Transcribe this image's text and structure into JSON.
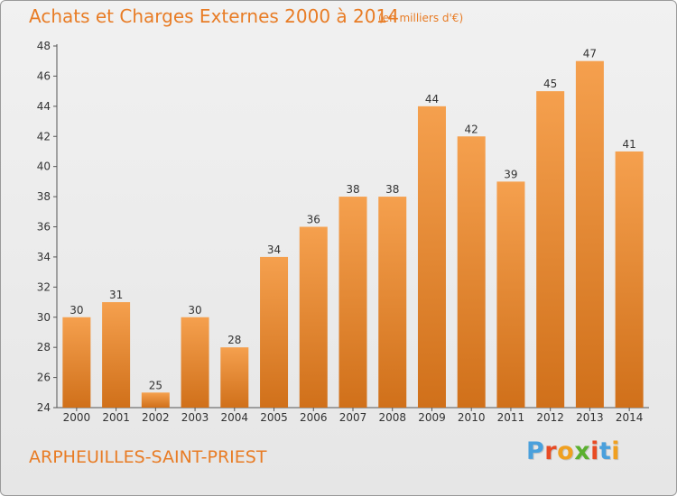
{
  "header": {
    "title": "Achats et Charges Externes 2000 à 2014",
    "subtitle": "(en milliers d'€)"
  },
  "footer": {
    "location": "ARPHEUILLES-SAINT-PRIEST",
    "logo": "Proxiti"
  },
  "colors": {
    "bar_light": "#f5a04e",
    "bar_dark": "#d0701a",
    "title": "#e87c25",
    "logo_letters": [
      "#4aa0dc",
      "#e84b24",
      "#f0a020",
      "#5bb030",
      "#e84b24",
      "#4aa0dc",
      "#f0a020"
    ]
  },
  "chart_data": {
    "type": "bar",
    "title": "Achats et Charges Externes 2000 à 2014",
    "subtitle": "(en milliers d'€)",
    "categories": [
      "2000",
      "2001",
      "2002",
      "2003",
      "2004",
      "2005",
      "2006",
      "2007",
      "2008",
      "2009",
      "2010",
      "2011",
      "2012",
      "2013",
      "2014"
    ],
    "values": [
      30,
      31,
      25,
      30,
      28,
      34,
      36,
      38,
      38,
      44,
      42,
      39,
      45,
      47,
      41
    ],
    "ylim": [
      24,
      48
    ],
    "yticks": [
      24,
      26,
      28,
      30,
      32,
      34,
      36,
      38,
      40,
      42,
      44,
      46,
      48
    ],
    "grid": false,
    "legend": "none"
  }
}
